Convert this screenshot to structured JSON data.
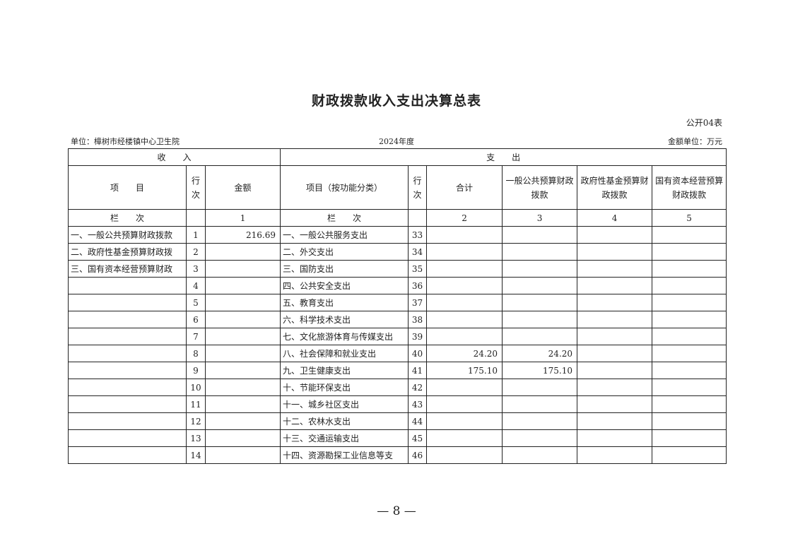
{
  "title": "财政拨款收入支出决算总表",
  "table_code": "公开04表",
  "unit": "单位：樟树市经楼镇中心卫生院",
  "year": "2024年度",
  "amount_unit": "金额单位：万元",
  "headers": {
    "income": "收　　入",
    "expense": "支　　出",
    "item": "项　　目",
    "row_no": "行次",
    "amount": "金额",
    "item_func": "项目（按功能分类）",
    "total": "合计",
    "general": "一般公共预算财政拨款",
    "fund": "政府性基金预算财政拨款",
    "state": "国有资本经营预算财政拨款",
    "col_label": "栏　　次",
    "c1": "1",
    "c2": "2",
    "c3": "3",
    "c4": "4",
    "c5": "5"
  },
  "rows": [
    {
      "income_item": "一、一般公共预算财政拨款",
      "in_no": "1",
      "amount": "216.69",
      "exp_item": "一、一般公共服务支出",
      "ex_no": "33",
      "total": "",
      "general": "",
      "fund": "",
      "state": ""
    },
    {
      "income_item": "二、政府性基金预算财政拨",
      "in_no": "2",
      "amount": "",
      "exp_item": "二、外交支出",
      "ex_no": "34",
      "total": "",
      "general": "",
      "fund": "",
      "state": ""
    },
    {
      "income_item": "三、国有资本经营预算财政",
      "in_no": "3",
      "amount": "",
      "exp_item": "三、国防支出",
      "ex_no": "35",
      "total": "",
      "general": "",
      "fund": "",
      "state": ""
    },
    {
      "income_item": "",
      "in_no": "4",
      "amount": "",
      "exp_item": "四、公共安全支出",
      "ex_no": "36",
      "total": "",
      "general": "",
      "fund": "",
      "state": ""
    },
    {
      "income_item": "",
      "in_no": "5",
      "amount": "",
      "exp_item": "五、教育支出",
      "ex_no": "37",
      "total": "",
      "general": "",
      "fund": "",
      "state": ""
    },
    {
      "income_item": "",
      "in_no": "6",
      "amount": "",
      "exp_item": "六、科学技术支出",
      "ex_no": "38",
      "total": "",
      "general": "",
      "fund": "",
      "state": ""
    },
    {
      "income_item": "",
      "in_no": "7",
      "amount": "",
      "exp_item": "七、文化旅游体育与传媒支出",
      "ex_no": "39",
      "total": "",
      "general": "",
      "fund": "",
      "state": ""
    },
    {
      "income_item": "",
      "in_no": "8",
      "amount": "",
      "exp_item": "八、社会保障和就业支出",
      "ex_no": "40",
      "total": "24.20",
      "general": "24.20",
      "fund": "",
      "state": ""
    },
    {
      "income_item": "",
      "in_no": "9",
      "amount": "",
      "exp_item": "九、卫生健康支出",
      "ex_no": "41",
      "total": "175.10",
      "general": "175.10",
      "fund": "",
      "state": ""
    },
    {
      "income_item": "",
      "in_no": "10",
      "amount": "",
      "exp_item": "十、节能环保支出",
      "ex_no": "42",
      "total": "",
      "general": "",
      "fund": "",
      "state": ""
    },
    {
      "income_item": "",
      "in_no": "11",
      "amount": "",
      "exp_item": "十一、城乡社区支出",
      "ex_no": "43",
      "total": "",
      "general": "",
      "fund": "",
      "state": ""
    },
    {
      "income_item": "",
      "in_no": "12",
      "amount": "",
      "exp_item": "十二、农林水支出",
      "ex_no": "44",
      "total": "",
      "general": "",
      "fund": "",
      "state": ""
    },
    {
      "income_item": "",
      "in_no": "13",
      "amount": "",
      "exp_item": "十三、交通运输支出",
      "ex_no": "45",
      "total": "",
      "general": "",
      "fund": "",
      "state": ""
    },
    {
      "income_item": "",
      "in_no": "14",
      "amount": "",
      "exp_item": "十四、资源勘探工业信息等支",
      "ex_no": "46",
      "total": "",
      "general": "",
      "fund": "",
      "state": ""
    }
  ],
  "page_number": "— 8 —"
}
